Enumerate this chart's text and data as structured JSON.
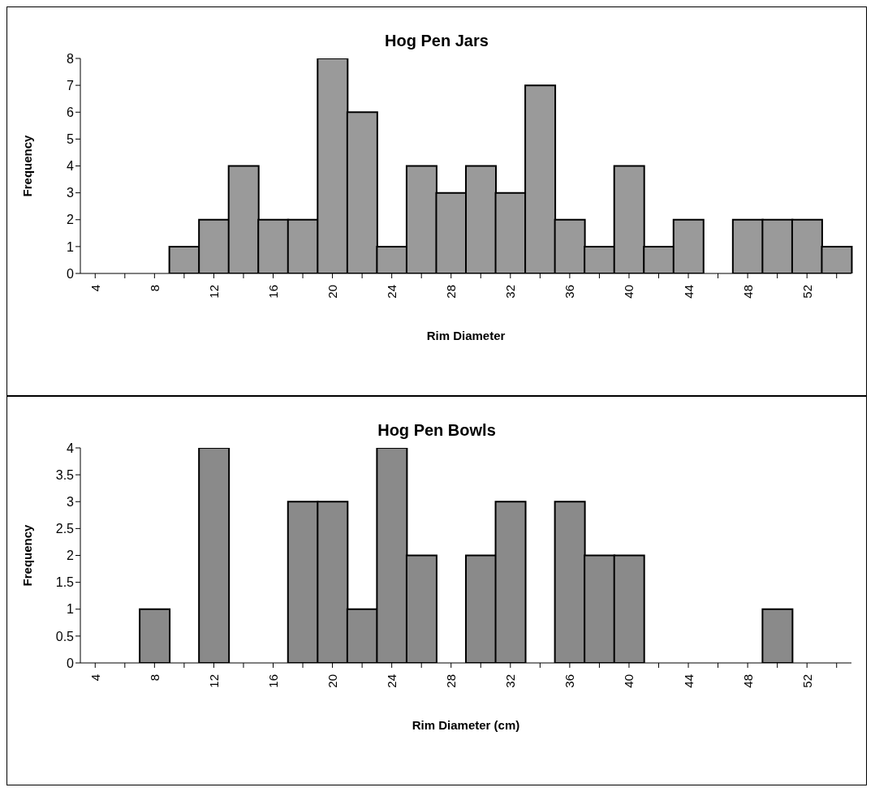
{
  "chart_data": [
    {
      "type": "bar",
      "title": "Hog Pen Jars",
      "xlabel": "Rim Diameter",
      "ylabel": "Frequency",
      "categories": [
        "4",
        null,
        "8",
        null,
        "12",
        null,
        "16",
        null,
        "20",
        null,
        "24",
        null,
        "28",
        null,
        "32",
        null,
        "36",
        null,
        "40",
        null,
        "44",
        null,
        "48",
        null,
        "52",
        null
      ],
      "values": [
        0,
        0,
        0,
        1,
        2,
        4,
        2,
        2,
        8,
        6,
        1,
        4,
        3,
        4,
        3,
        7,
        2,
        1,
        4,
        1,
        2,
        0,
        2,
        2,
        2,
        1
      ],
      "color": "#9a9a9a",
      "ylim": [
        0,
        8
      ],
      "yticks": [
        0,
        1,
        2,
        3,
        4,
        5,
        6,
        7,
        8
      ],
      "grid": false
    },
    {
      "type": "bar",
      "title": "Hog Pen Bowls",
      "xlabel": "Rim Diameter (cm)",
      "ylabel": "Frequency",
      "categories": [
        "4",
        null,
        "8",
        null,
        "12",
        null,
        "16",
        null,
        "20",
        null,
        "24",
        null,
        "28",
        null,
        "32",
        null,
        "36",
        null,
        "40",
        null,
        "44",
        null,
        "48",
        null,
        "52",
        null
      ],
      "values": [
        0,
        0,
        1,
        0,
        4,
        0,
        0,
        3,
        3,
        1,
        4,
        2,
        0,
        2,
        3,
        0,
        3,
        2,
        2,
        0,
        0,
        0,
        0,
        1,
        0,
        0
      ],
      "color": "#8a8a8a",
      "ylim": [
        0,
        4
      ],
      "yticks": [
        0,
        0.5,
        1,
        1.5,
        2,
        2.5,
        3,
        3.5,
        4
      ],
      "grid": false
    }
  ]
}
